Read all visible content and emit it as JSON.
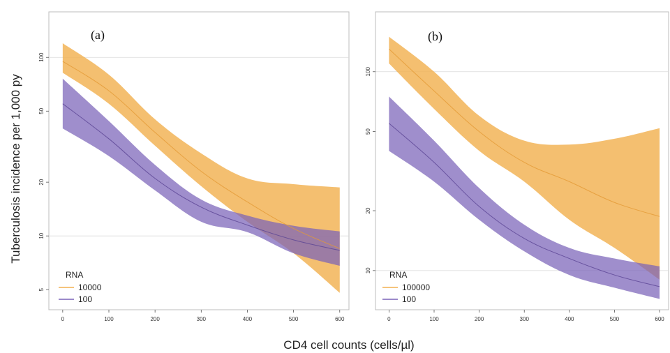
{
  "figure": {
    "ylabel": "Tuberculosis  incidence per 1,000 py",
    "xlabel": "CD4 cell counts  (cells/µl)"
  },
  "colors": {
    "high": "#f2b150",
    "low": "#7a62b8",
    "overlap": "#c6757c",
    "frame": "#bdbdbd",
    "gridline": "#d9d9d9"
  },
  "chart_data": [
    {
      "type": "line",
      "panel_label": "(a)",
      "x_ticks": [
        0,
        100,
        200,
        300,
        400,
        500,
        600
      ],
      "y_ticks": [
        5,
        10,
        20,
        50,
        100
      ],
      "y_scale": "log",
      "ylim": [
        4.3,
        160
      ],
      "xlim": [
        -30,
        620
      ],
      "reference_lines": [
        10,
        100
      ],
      "legend": {
        "title": "RNA",
        "position": "bottom-left"
      },
      "series": [
        {
          "name": "10000",
          "x": [
            0,
            100,
            200,
            300,
            400,
            500,
            600
          ],
          "y": [
            95,
            65,
            38,
            23,
            15.5,
            11,
            8.5
          ],
          "lower": [
            82,
            55,
            32,
            19,
            12,
            8,
            4.8
          ],
          "upper": [
            120,
            80,
            45,
            29,
            21,
            19.5,
            18.7
          ]
        },
        {
          "name": "100",
          "x": [
            0,
            100,
            200,
            300,
            400,
            500,
            600
          ],
          "y": [
            55,
            35,
            21,
            14.5,
            11.5,
            9.5,
            8.3
          ],
          "lower": [
            40,
            28,
            18,
            12,
            10.5,
            8,
            6.8
          ],
          "upper": [
            76,
            44,
            25,
            16,
            13,
            11.4,
            10.6
          ]
        }
      ]
    },
    {
      "type": "line",
      "panel_label": "(b)",
      "x_ticks": [
        0,
        100,
        200,
        300,
        400,
        500,
        600
      ],
      "y_ticks": [
        10,
        20,
        50,
        100
      ],
      "y_scale": "log",
      "ylim": [
        7,
        180
      ],
      "xlim": [
        -30,
        620
      ],
      "reference_lines": [
        10,
        100
      ],
      "legend": {
        "title": "RNA",
        "position": "bottom-left"
      },
      "series": [
        {
          "name": "100000",
          "x": [
            0,
            100,
            200,
            300,
            400,
            500,
            600
          ],
          "y": [
            130,
            80,
            50,
            35,
            28,
            22,
            18.7
          ],
          "lower": [
            110,
            65,
            40,
            28,
            18,
            13,
            9
          ],
          "upper": [
            150,
            100,
            60,
            45,
            43,
            46,
            52
          ]
        },
        {
          "name": "100",
          "x": [
            0,
            100,
            200,
            300,
            400,
            500,
            600
          ],
          "y": [
            55,
            35,
            21,
            14.5,
            11.5,
            9.5,
            8.3
          ],
          "lower": [
            40,
            28,
            18,
            12.5,
            9.5,
            8.2,
            7.2
          ],
          "upper": [
            75,
            45,
            26,
            17,
            13,
            11.5,
            10.5
          ]
        }
      ]
    }
  ]
}
